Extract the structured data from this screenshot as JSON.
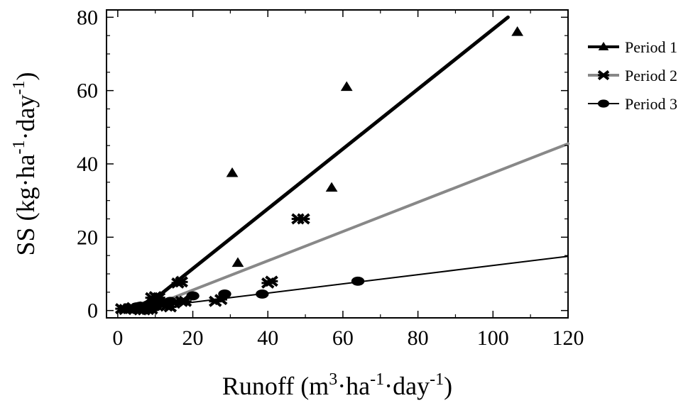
{
  "chart_data": {
    "type": "scatter",
    "xlabel": "Runoff (m",
    "xlabel_parts": [
      "Runoff (m",
      "3",
      "·ha",
      "-1",
      "·day",
      "-1",
      ")"
    ],
    "ylabel": "SS (kg·ha",
    "ylabel_parts": [
      "SS (kg·ha",
      "-1",
      "·day",
      "-1",
      ")"
    ],
    "xlim": [
      -3,
      120
    ],
    "ylim": [
      -2,
      82
    ],
    "xticks": [
      0,
      20,
      40,
      60,
      80,
      100,
      120
    ],
    "yticks": [
      0,
      20,
      40,
      60,
      80
    ],
    "xtick_labels": [
      "0",
      "20",
      "40",
      "60",
      "80",
      "100",
      "120"
    ],
    "ytick_labels": [
      "0",
      "20",
      "40",
      "60",
      "80"
    ],
    "grid": false,
    "legend_position": "right",
    "series": [
      {
        "name": "Period 1",
        "marker": "triangle",
        "line_color": "#000000",
        "points": [
          {
            "x": 2,
            "y": 0.5
          },
          {
            "x": 4,
            "y": 0.3
          },
          {
            "x": 6,
            "y": 1.0
          },
          {
            "x": 8,
            "y": 1.8
          },
          {
            "x": 10,
            "y": 2.5
          },
          {
            "x": 16,
            "y": 8
          },
          {
            "x": 30.5,
            "y": 37.5
          },
          {
            "x": 32,
            "y": 13
          },
          {
            "x": 57,
            "y": 33.5
          },
          {
            "x": 61,
            "y": 61
          },
          {
            "x": 106.5,
            "y": 76
          }
        ],
        "fit": [
          {
            "x": 6,
            "y": 0
          },
          {
            "x": 104,
            "y": 80
          }
        ]
      },
      {
        "name": "Period 2",
        "marker": "x",
        "line_color": "#888888",
        "points": [
          {
            "x": 1,
            "y": 0.5
          },
          {
            "x": 2,
            "y": 0.3
          },
          {
            "x": 3,
            "y": 0.5
          },
          {
            "x": 4,
            "y": 0.8
          },
          {
            "x": 6,
            "y": 0.2
          },
          {
            "x": 7,
            "y": 0.2
          },
          {
            "x": 8,
            "y": 0.3
          },
          {
            "x": 9,
            "y": 0.4
          },
          {
            "x": 9,
            "y": 3.5
          },
          {
            "x": 10,
            "y": 3.8
          },
          {
            "x": 11,
            "y": 3.5
          },
          {
            "x": 12,
            "y": 1.5
          },
          {
            "x": 13,
            "y": 1.2
          },
          {
            "x": 14,
            "y": 1.0
          },
          {
            "x": 15,
            "y": 2.0
          },
          {
            "x": 16,
            "y": 7.5
          },
          {
            "x": 17,
            "y": 7.8
          },
          {
            "x": 17,
            "y": 2.5
          },
          {
            "x": 18,
            "y": 2.5
          },
          {
            "x": 26,
            "y": 2.5
          },
          {
            "x": 27.5,
            "y": 3.0
          },
          {
            "x": 40,
            "y": 7.5
          },
          {
            "x": 41,
            "y": 8.0
          },
          {
            "x": 48,
            "y": 25
          },
          {
            "x": 49.5,
            "y": 25
          }
        ],
        "fit": [
          {
            "x": 6,
            "y": 0
          },
          {
            "x": 120,
            "y": 45.5
          }
        ]
      },
      {
        "name": "Period 3",
        "marker": "circle",
        "line_color": "#000000",
        "points": [
          {
            "x": 3,
            "y": 0.5
          },
          {
            "x": 5,
            "y": 1.0
          },
          {
            "x": 6,
            "y": 1.2
          },
          {
            "x": 8,
            "y": 1.5
          },
          {
            "x": 10,
            "y": 1.0
          },
          {
            "x": 12,
            "y": 2.0
          },
          {
            "x": 14,
            "y": 2.5
          },
          {
            "x": 20,
            "y": 4.0
          },
          {
            "x": 28.5,
            "y": 4.5
          },
          {
            "x": 38.5,
            "y": 4.5
          },
          {
            "x": 64,
            "y": 8.0
          }
        ],
        "fit": [
          {
            "x": 6,
            "y": 0.5
          },
          {
            "x": 120,
            "y": 14.8
          }
        ]
      }
    ]
  }
}
